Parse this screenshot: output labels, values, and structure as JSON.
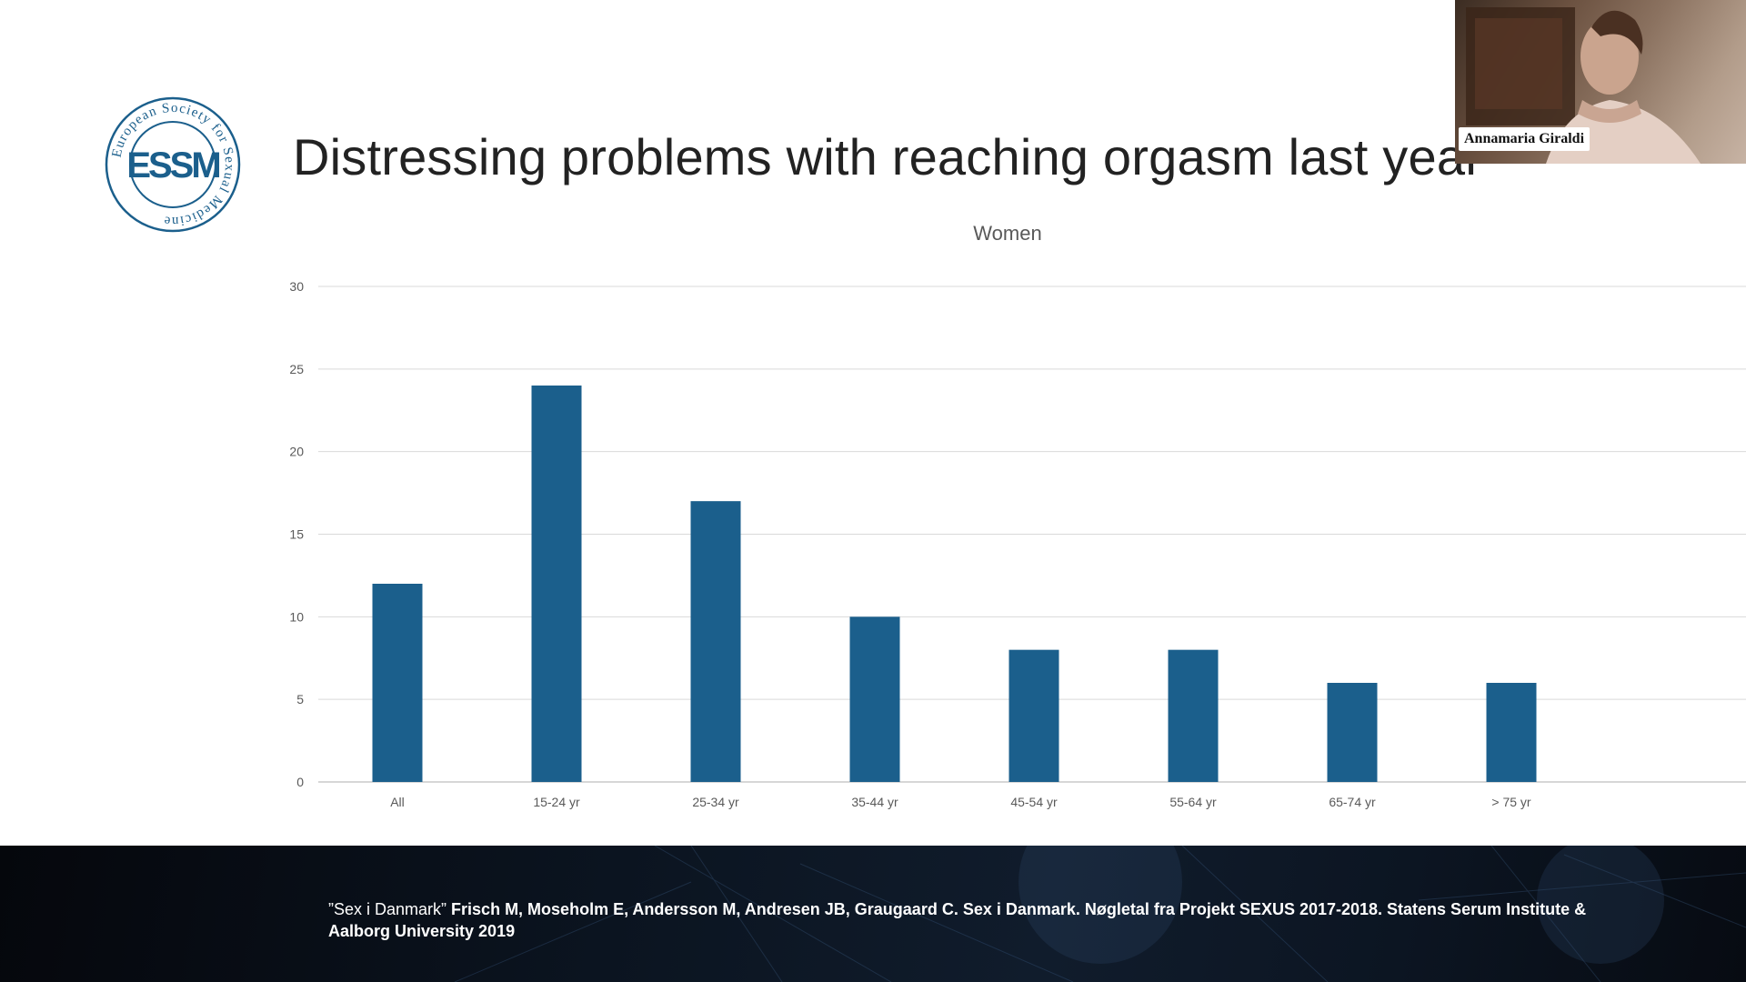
{
  "slide": {
    "title": "Distressing problems with reaching orgasm last year",
    "logo": {
      "ring_text": "European Society for Sexual Medicine",
      "monogram": "ESSM",
      "color": "#1b5f8c"
    }
  },
  "chart_data": {
    "type": "bar",
    "title": "Women",
    "categories": [
      "All",
      "15-24 yr",
      "25-34 yr",
      "35-44 yr",
      "45-54 yr",
      "55-64 yr",
      "65-74 yr",
      "> 75 yr"
    ],
    "values": [
      12,
      24,
      17,
      10,
      8,
      8,
      6,
      6
    ],
    "xlabel": "",
    "ylabel": "",
    "ylim": [
      0,
      30
    ],
    "yticks": [
      0,
      5,
      10,
      15,
      20,
      25,
      30
    ],
    "grid": true,
    "bar_color": "#1b5f8c"
  },
  "footer": {
    "citation_name": "”Sex i Danmark”",
    "citation_rest": "Frisch M, Moseholm E, Andersson M, Andresen JB, Graugaard C. Sex i Danmark. Nøgletal fra Projekt SEXUS 2017-2018. Statens Serum Institute & Aalborg University 2019"
  },
  "video": {
    "participant_name": "Annamaria Giraldi"
  }
}
